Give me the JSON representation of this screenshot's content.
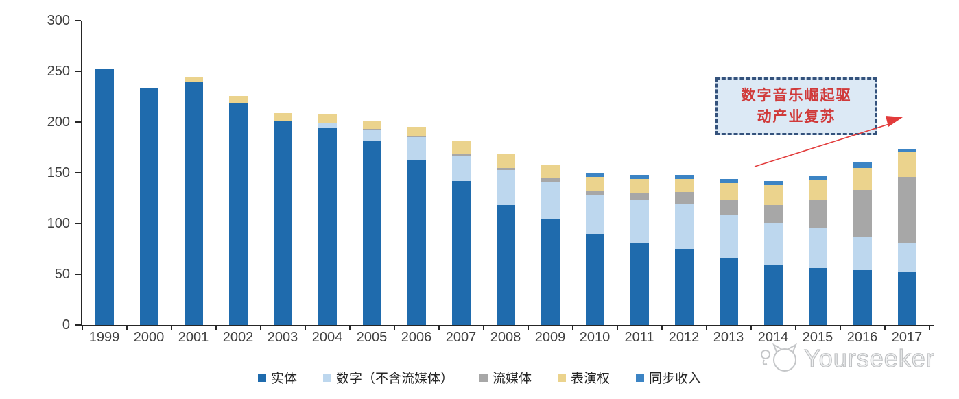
{
  "chart_data": {
    "type": "bar",
    "stacked": true,
    "title": "",
    "xlabel": "",
    "ylabel": "",
    "ylim": [
      0,
      300
    ],
    "yticks": [
      0,
      50,
      100,
      150,
      200,
      250,
      300
    ],
    "grid": false,
    "legend_position": "bottom",
    "categories": [
      "1999",
      "2000",
      "2001",
      "2002",
      "2003",
      "2004",
      "2005",
      "2006",
      "2007",
      "2008",
      "2009",
      "2010",
      "2011",
      "2012",
      "2013",
      "2014",
      "2015",
      "2016",
      "2017"
    ],
    "series": [
      {
        "name": "实体",
        "color": "#1F6BAD",
        "values": [
          252,
          234,
          239,
          219,
          201,
          194,
          182,
          163,
          142,
          118,
          104,
          89,
          81,
          75,
          66,
          59,
          56,
          54,
          52
        ]
      },
      {
        "name": "数字（不含流媒体）",
        "color": "#BDD7EE",
        "values": [
          0,
          0,
          0,
          0,
          0,
          5,
          10,
          22,
          25,
          35,
          37,
          39,
          42,
          44,
          43,
          41,
          39,
          33,
          29
        ]
      },
      {
        "name": "流媒体",
        "color": "#A7A7A7",
        "values": [
          0,
          0,
          0,
          0,
          0,
          0,
          1,
          1,
          2,
          2,
          4,
          4,
          7,
          12,
          14,
          18,
          28,
          46,
          65
        ]
      },
      {
        "name": "表演权",
        "color": "#EBD38D",
        "values": [
          0,
          0,
          5,
          7,
          8,
          9,
          8,
          9,
          13,
          14,
          13,
          14,
          14,
          13,
          17,
          20,
          20,
          22,
          24
        ]
      },
      {
        "name": "同步收入",
        "color": "#3C84C4",
        "values": [
          0,
          0,
          0,
          0,
          0,
          0,
          0,
          0,
          0,
          0,
          0,
          4,
          4,
          4,
          4,
          4,
          4,
          5,
          3
        ]
      }
    ]
  },
  "annotation": {
    "line1": "数字音乐崛起驱",
    "line2": "动产业复苏",
    "text_color": "#d03a3a",
    "box_fill": "#dce9f5",
    "box_border": "#34527c",
    "arrow_color": "#e23b3b"
  },
  "watermark": {
    "text": "Yourseeker"
  }
}
